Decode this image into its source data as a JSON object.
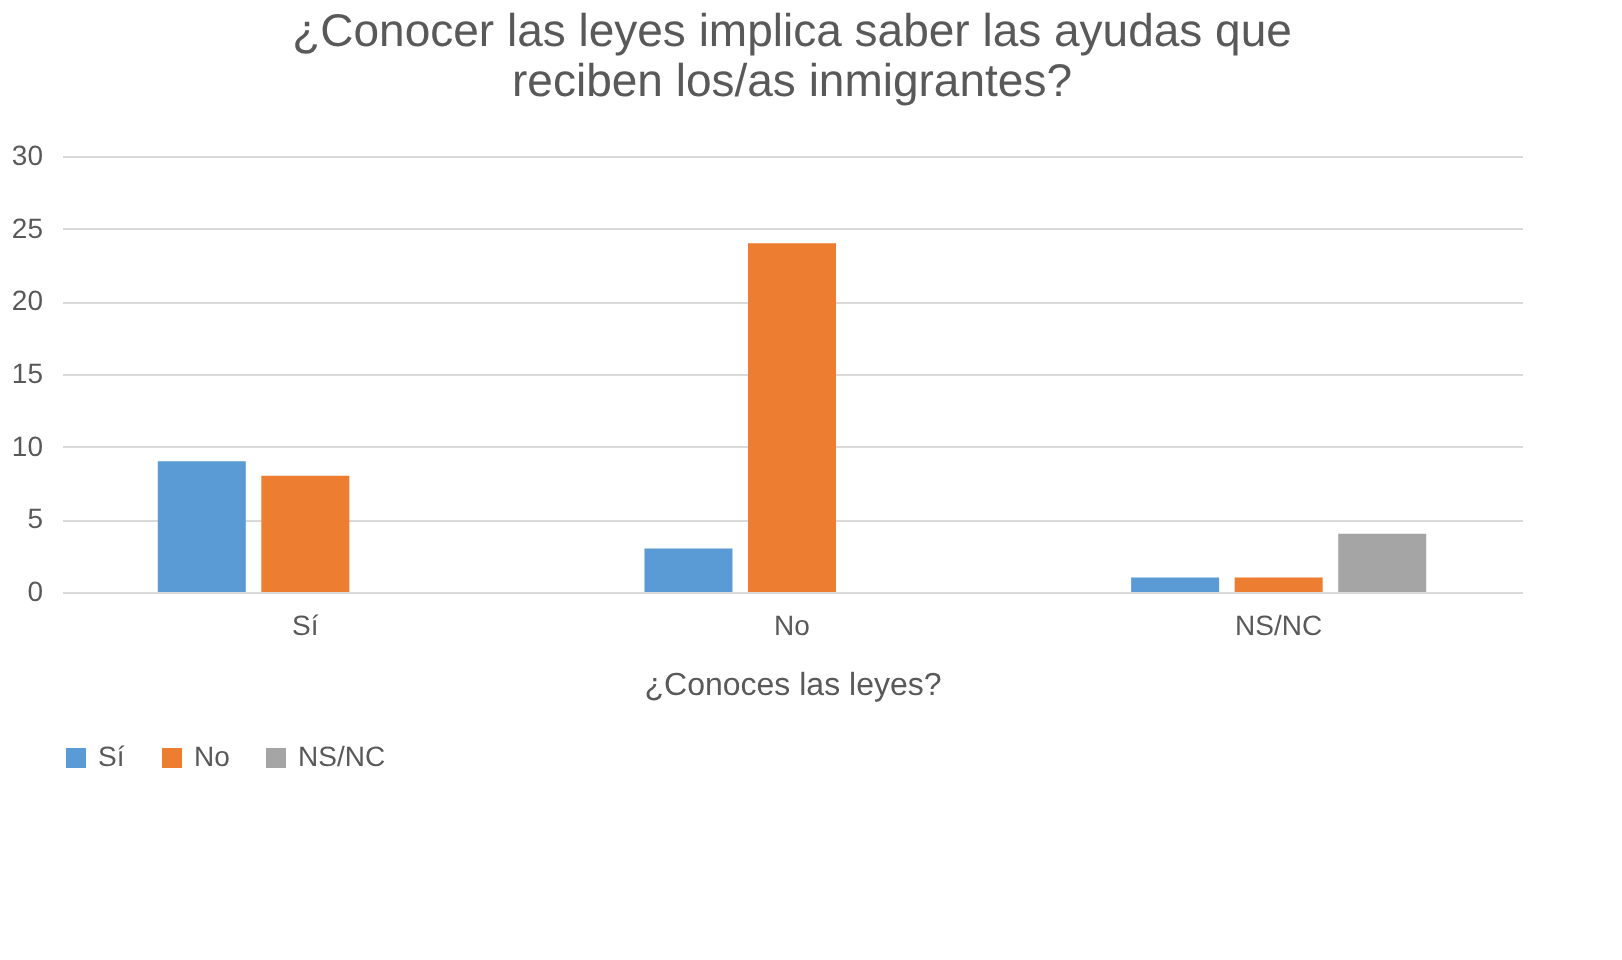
{
  "chart_data": {
    "type": "bar",
    "title": [
      "¿Conocer las leyes implica saber las ayudas que",
      "reciben los/as inmigrantes?"
    ],
    "xlabel": "¿Conoces las leyes?",
    "categories": [
      "Sí",
      "No",
      "NS/NC"
    ],
    "series": [
      {
        "name": "Sí",
        "color": "#5b9bd5",
        "values": [
          9,
          3,
          1
        ]
      },
      {
        "name": "No",
        "color": "#ed7d31",
        "values": [
          8,
          24,
          1
        ]
      },
      {
        "name": "NS/NC",
        "color": "#a5a5a5",
        "values": [
          null,
          null,
          4
        ]
      }
    ],
    "ylim": [
      0,
      30
    ],
    "yticks": [
      0,
      5,
      10,
      15,
      20,
      25,
      30
    ],
    "grid": "y",
    "legend": "bottom"
  }
}
